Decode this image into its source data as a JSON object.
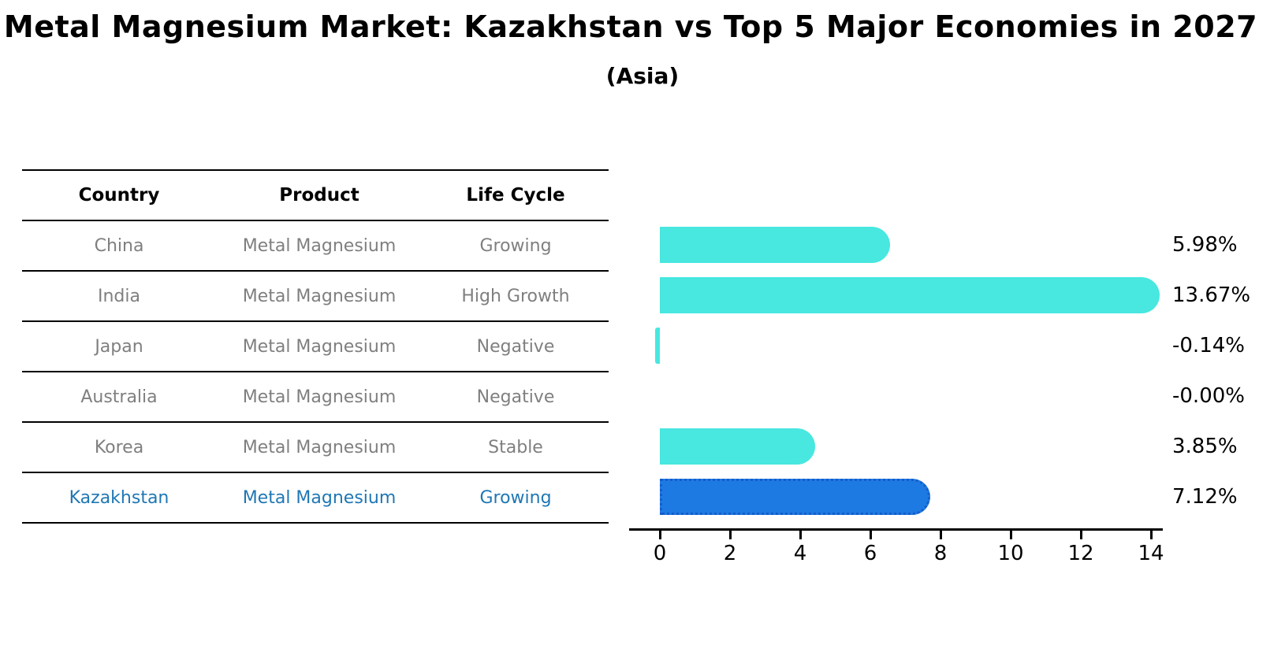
{
  "title": "Metal Magnesium Market: Kazakhstan vs Top 5 Major Economies in 2027",
  "subtitle": "(Asia)",
  "table": {
    "headers": [
      "Country",
      "Product",
      "Life Cycle"
    ],
    "rows": [
      {
        "country": "China",
        "product": "Metal Magnesium",
        "life_cycle": "Growing",
        "highlight": false
      },
      {
        "country": "India",
        "product": "Metal Magnesium",
        "life_cycle": "High Growth",
        "highlight": false
      },
      {
        "country": "Japan",
        "product": "Metal Magnesium",
        "life_cycle": "Negative",
        "highlight": false
      },
      {
        "country": "Australia",
        "product": "Metal Magnesium",
        "life_cycle": "Negative",
        "highlight": false
      },
      {
        "country": "Korea",
        "product": "Metal Magnesium",
        "life_cycle": "Stable",
        "highlight": false
      },
      {
        "country": "Kazakhstan",
        "product": "Metal Magnesium",
        "life_cycle": "Growing",
        "highlight": true
      }
    ]
  },
  "chart_data": {
    "type": "bar",
    "orientation": "horizontal",
    "title": "Metal Magnesium Market: Kazakhstan vs Top 5 Major Economies in 2027",
    "subtitle": "(Asia)",
    "categories": [
      "China",
      "India",
      "Japan",
      "Australia",
      "Korea",
      "Kazakhstan"
    ],
    "values": [
      5.98,
      13.67,
      -0.14,
      0.0,
      3.85,
      7.12
    ],
    "value_labels": [
      "5.98%",
      "13.67%",
      "-0.14%",
      "-0.00%",
      "3.85%",
      "7.12%"
    ],
    "x_ticks": [
      0,
      2,
      4,
      6,
      8,
      10,
      12,
      14
    ],
    "xlim": [
      -0.5,
      14
    ],
    "xlabel": "",
    "ylabel": "",
    "grid": false,
    "legend": "none",
    "highlight_index": 5,
    "bar_color": "#48E7DF",
    "highlight_color": "#1E7AE3",
    "label_color": "#000000",
    "muted_text_color": "#7f7f7f",
    "highlight_text_color": "#1f77b4"
  }
}
